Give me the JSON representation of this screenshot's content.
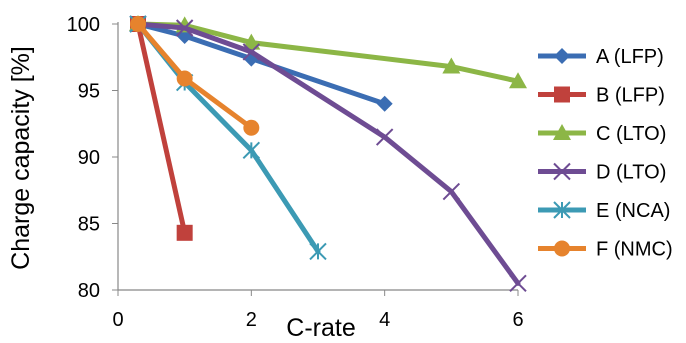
{
  "chart_data": {
    "type": "line",
    "title": "",
    "xlabel": "C-rate",
    "ylabel": "Charge capacity [%]",
    "xlim": [
      0,
      6
    ],
    "ylim": [
      80,
      100
    ],
    "x_ticks": [
      "0",
      "2",
      "4",
      "6"
    ],
    "y_ticks": [
      "80",
      "85",
      "90",
      "95",
      "100"
    ],
    "grid": false,
    "legend_position": "right",
    "series": [
      {
        "name": "A (LFP)",
        "color": "#3b6db3",
        "marker": "diamond",
        "x": [
          0.3,
          1,
          2,
          4
        ],
        "y": [
          100,
          99.1,
          97.4,
          94
        ]
      },
      {
        "name": "B (LFP)",
        "color": "#c0413c",
        "marker": "square",
        "x": [
          0.3,
          1
        ],
        "y": [
          100,
          84.3
        ]
      },
      {
        "name": "C (LTO)",
        "color": "#8cb646",
        "marker": "triangle",
        "x": [
          0.3,
          1,
          2,
          5,
          6
        ],
        "y": [
          100,
          99.9,
          98.6,
          96.8,
          95.7
        ]
      },
      {
        "name": "D (LTO)",
        "color": "#6e4c93",
        "marker": "x",
        "x": [
          0.3,
          1,
          2,
          4,
          5,
          6
        ],
        "y": [
          100,
          99.7,
          97.9,
          91.5,
          87.4,
          80.5
        ]
      },
      {
        "name": "E (NCA)",
        "color": "#3c9ab4",
        "marker": "asterisk",
        "x": [
          0.3,
          1,
          2,
          3
        ],
        "y": [
          100,
          95.6,
          90.5,
          82.9
        ]
      },
      {
        "name": "F (NMC)",
        "color": "#e6832d",
        "marker": "circle",
        "x": [
          0.3,
          1,
          2
        ],
        "y": [
          100,
          95.9,
          92.2
        ]
      }
    ]
  }
}
